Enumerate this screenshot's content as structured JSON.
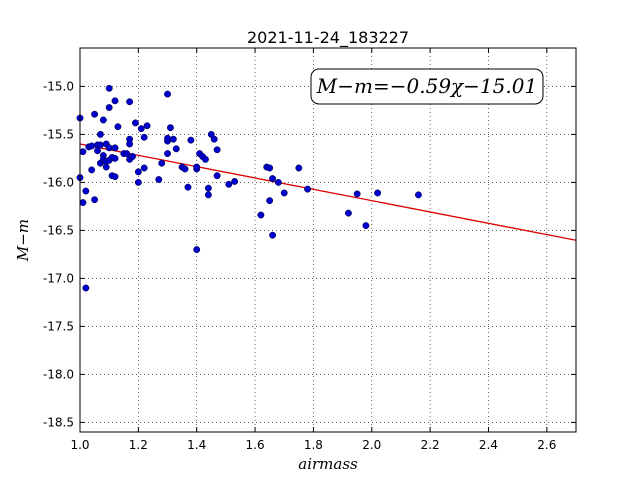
{
  "chart_data": {
    "type": "scatter",
    "title": "2021-11-24_183227",
    "xlabel": "airmass",
    "ylabel": "M−m",
    "xlim": [
      1.0,
      2.7
    ],
    "ylim": [
      -18.6,
      -14.6
    ],
    "y_inverted": true,
    "grid": true,
    "x_ticks": [
      "1.0",
      "1.2",
      "1.4",
      "1.6",
      "1.8",
      "2.0",
      "2.2",
      "2.4",
      "2.6"
    ],
    "y_ticks": [
      "-15.0",
      "-15.5",
      "-16.0",
      "-16.5",
      "-17.0",
      "-17.5",
      "-18.0",
      "-18.5"
    ],
    "annotation": "M−m=−0.59χ−15.01",
    "marker_color": "#0000cc",
    "fit_color": "#dd0000",
    "fit_line": {
      "slope": -0.59,
      "intercept": -15.01
    },
    "points": [
      [
        1.0,
        -15.33
      ],
      [
        1.0,
        -15.95
      ],
      [
        1.01,
        -15.68
      ],
      [
        1.01,
        -16.21
      ],
      [
        1.02,
        -16.09
      ],
      [
        1.02,
        -17.1
      ],
      [
        1.03,
        -15.63
      ],
      [
        1.04,
        -15.87
      ],
      [
        1.04,
        -15.62
      ],
      [
        1.05,
        -15.29
      ],
      [
        1.05,
        -16.18
      ],
      [
        1.06,
        -15.61
      ],
      [
        1.06,
        -15.67
      ],
      [
        1.07,
        -15.61
      ],
      [
        1.07,
        -15.5
      ],
      [
        1.07,
        -15.8
      ],
      [
        1.08,
        -15.72
      ],
      [
        1.08,
        -15.76
      ],
      [
        1.08,
        -15.35
      ],
      [
        1.09,
        -15.6
      ],
      [
        1.09,
        -15.84
      ],
      [
        1.09,
        -15.78
      ],
      [
        1.1,
        -15.22
      ],
      [
        1.1,
        -15.64
      ],
      [
        1.1,
        -15.02
      ],
      [
        1.1,
        -15.77
      ],
      [
        1.11,
        -15.93
      ],
      [
        1.11,
        -15.74
      ],
      [
        1.12,
        -15.15
      ],
      [
        1.12,
        -15.64
      ],
      [
        1.12,
        -15.94
      ],
      [
        1.12,
        -15.75
      ],
      [
        1.13,
        -15.42
      ],
      [
        1.15,
        -15.7
      ],
      [
        1.16,
        -15.7
      ],
      [
        1.17,
        -15.55
      ],
      [
        1.17,
        -15.6
      ],
      [
        1.17,
        -15.76
      ],
      [
        1.17,
        -15.16
      ],
      [
        1.18,
        -15.73
      ],
      [
        1.19,
        -15.38
      ],
      [
        1.2,
        -15.89
      ],
      [
        1.2,
        -16.0
      ],
      [
        1.21,
        -15.44
      ],
      [
        1.22,
        -15.53
      ],
      [
        1.22,
        -15.85
      ],
      [
        1.23,
        -15.41
      ],
      [
        1.27,
        -15.97
      ],
      [
        1.28,
        -15.8
      ],
      [
        1.3,
        -15.57
      ],
      [
        1.3,
        -15.54
      ],
      [
        1.3,
        -15.08
      ],
      [
        1.3,
        -15.7
      ],
      [
        1.31,
        -15.43
      ],
      [
        1.32,
        -15.55
      ],
      [
        1.33,
        -15.65
      ],
      [
        1.35,
        -15.84
      ],
      [
        1.36,
        -15.86
      ],
      [
        1.37,
        -16.05
      ],
      [
        1.38,
        -15.56
      ],
      [
        1.4,
        -15.86
      ],
      [
        1.4,
        -15.84
      ],
      [
        1.4,
        -16.7
      ],
      [
        1.41,
        -15.7
      ],
      [
        1.42,
        -15.73
      ],
      [
        1.43,
        -15.76
      ],
      [
        1.44,
        -16.06
      ],
      [
        1.44,
        -16.13
      ],
      [
        1.45,
        -15.5
      ],
      [
        1.46,
        -15.55
      ],
      [
        1.47,
        -15.93
      ],
      [
        1.47,
        -15.66
      ],
      [
        1.51,
        -16.02
      ],
      [
        1.53,
        -15.99
      ],
      [
        1.62,
        -16.34
      ],
      [
        1.64,
        -15.84
      ],
      [
        1.65,
        -15.85
      ],
      [
        1.65,
        -16.19
      ],
      [
        1.66,
        -16.55
      ],
      [
        1.66,
        -15.96
      ],
      [
        1.68,
        -16.0
      ],
      [
        1.7,
        -16.11
      ],
      [
        1.75,
        -15.85
      ],
      [
        1.78,
        -16.07
      ],
      [
        1.92,
        -16.32
      ],
      [
        1.95,
        -16.12
      ],
      [
        1.98,
        -16.45
      ],
      [
        2.02,
        -16.11
      ],
      [
        2.16,
        -16.13
      ]
    ]
  }
}
